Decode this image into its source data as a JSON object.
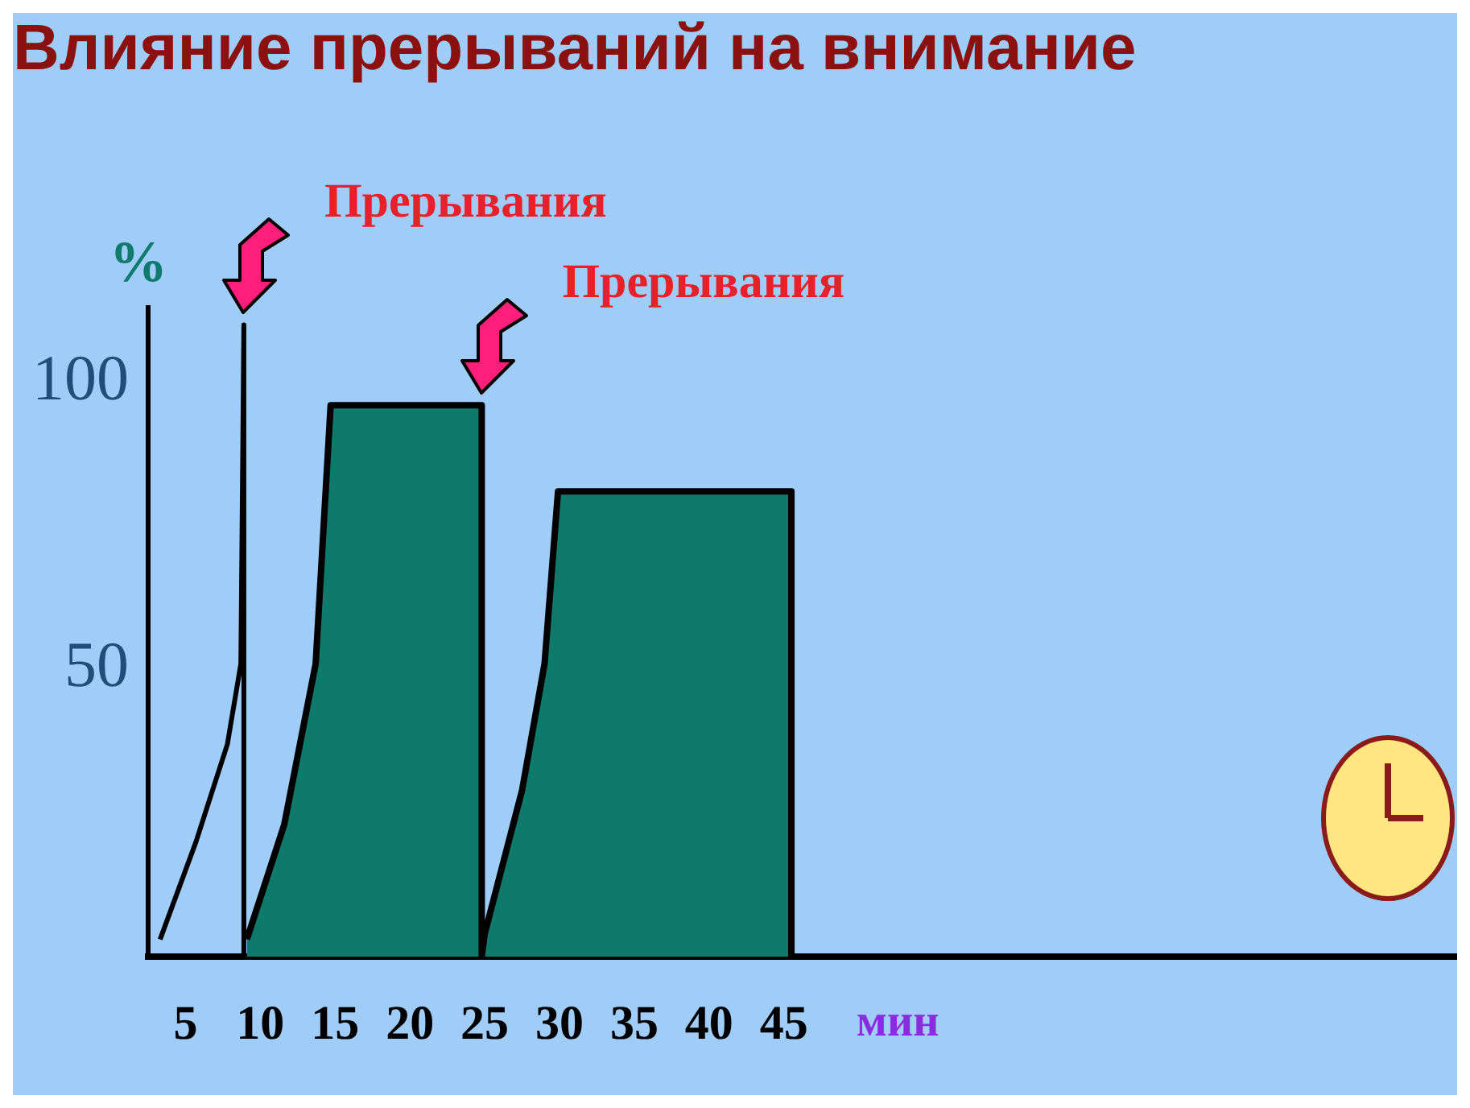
{
  "chart_data": {
    "type": "area",
    "title": "Влияние прерываний на внимание",
    "xlabel": "мин",
    "ylabel": "%",
    "xlim": [
      2.5,
      90
    ],
    "xticks": [
      5,
      10,
      15,
      20,
      25,
      30,
      35,
      40,
      45
    ],
    "ylim": [
      0,
      113
    ],
    "yticks": [
      50,
      100
    ],
    "grid": false,
    "series": [
      {
        "type": "line",
        "color": "#000000",
        "x": [
          3.3,
          5.7,
          7.8,
          8.7,
          8.9,
          8.9
        ],
        "values": [
          3,
          20,
          37,
          51,
          110,
          0
        ]
      },
      {
        "type": "area",
        "color": "#0e7a6c",
        "x": [
          9.1,
          11.6,
          13.7,
          14.7,
          24.8,
          24.8,
          25,
          27.5,
          29,
          29.9,
          45.5,
          45.5
        ],
        "values": [
          3,
          23,
          51,
          96,
          96,
          0,
          4,
          29,
          51,
          81,
          81,
          0
        ]
      }
    ],
    "annotations": [
      {
        "text": "Прерывания",
        "x": 8.9,
        "y": 110
      },
      {
        "text": "Прерывания",
        "x": 24.8,
        "y": 96
      }
    ]
  }
}
